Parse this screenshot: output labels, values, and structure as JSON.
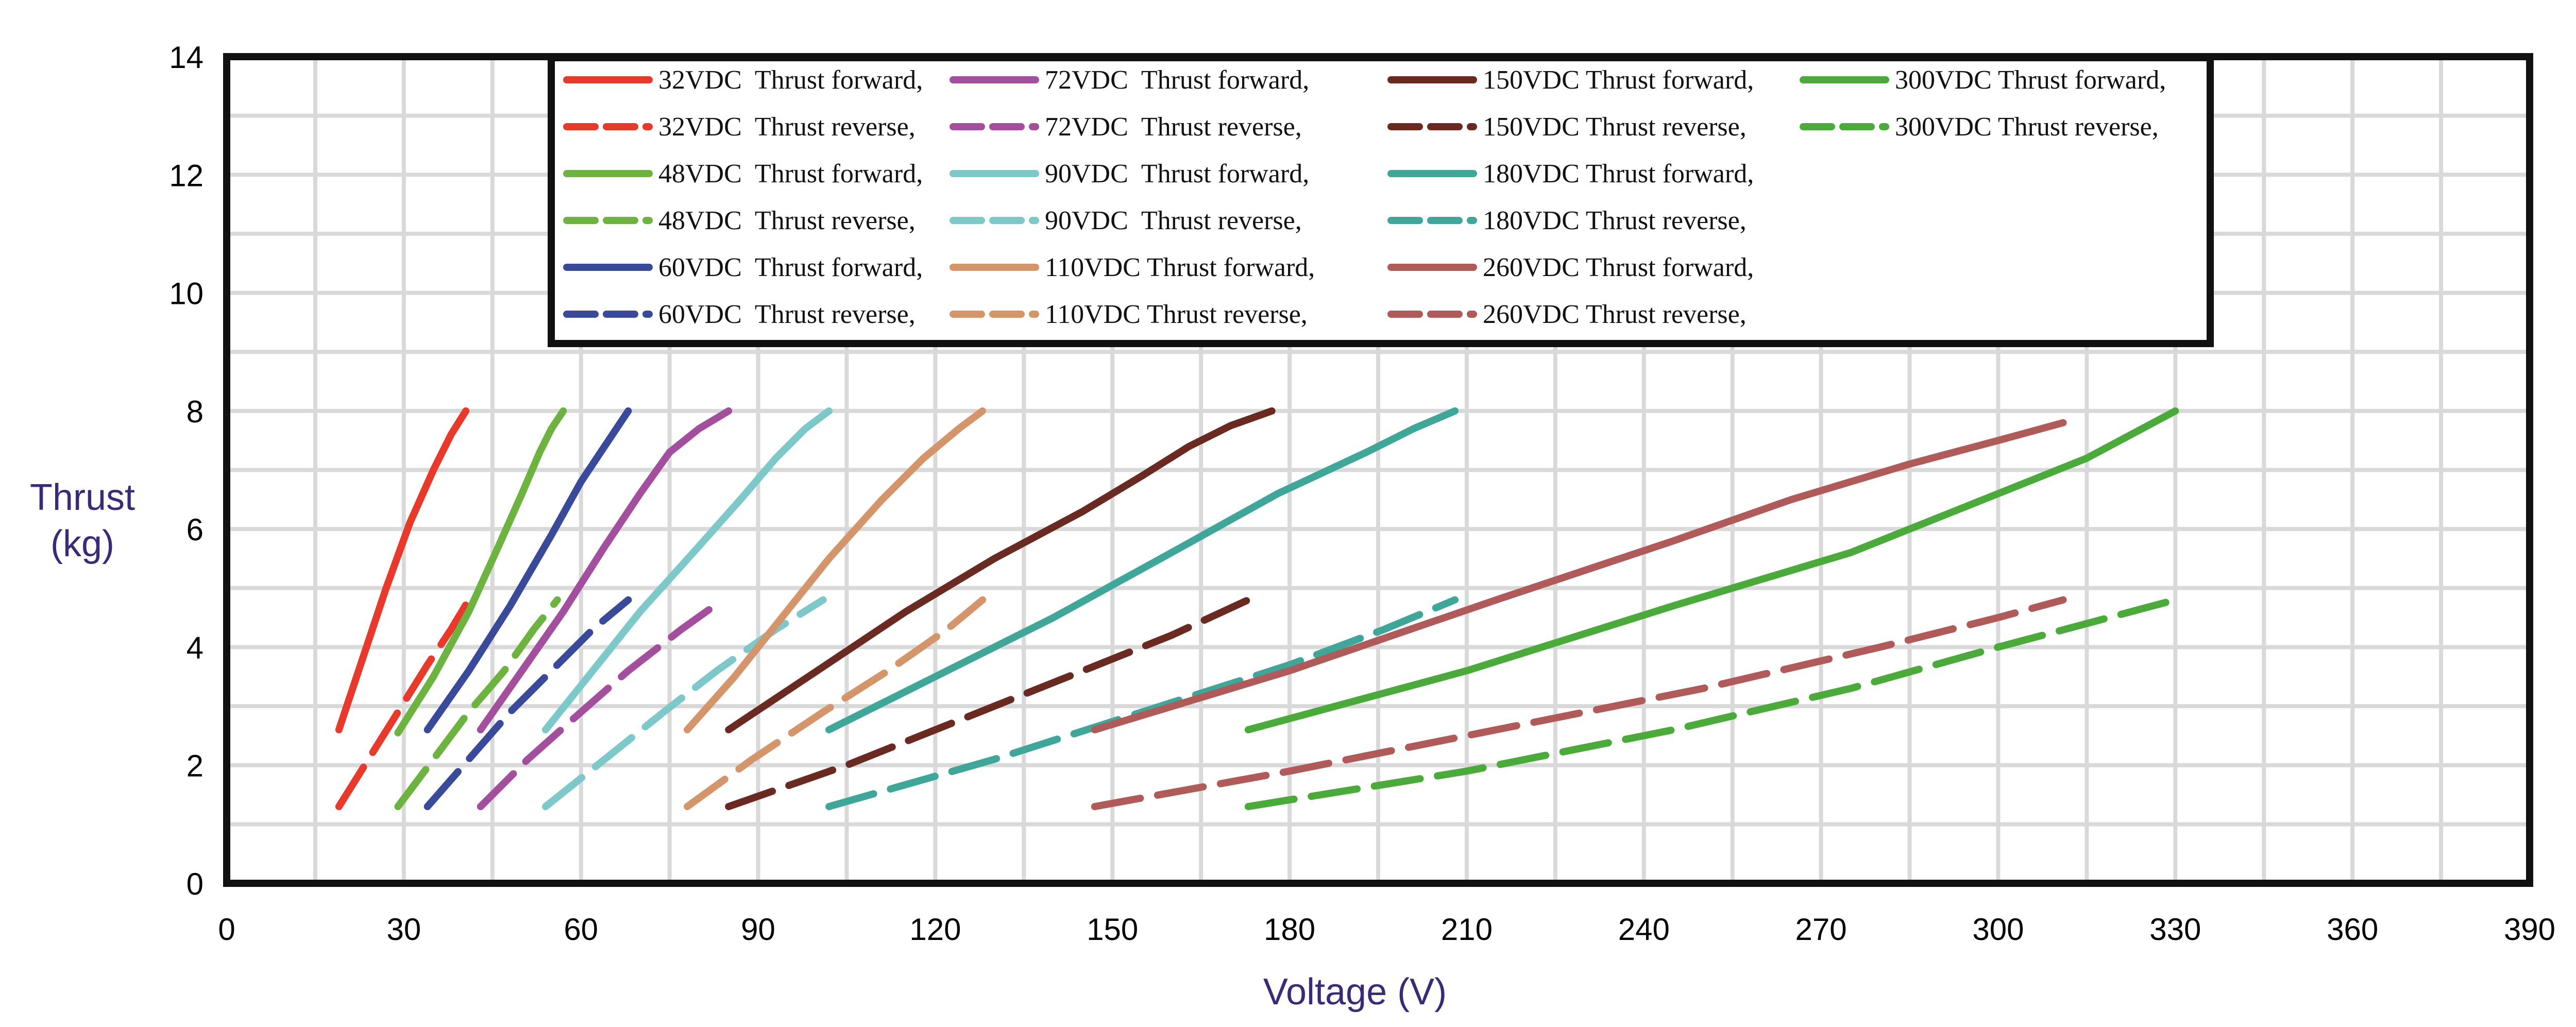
{
  "chart_data": {
    "type": "line",
    "title": "",
    "xlabel": "Voltage (V)",
    "ylabel_line1": "Thrust",
    "ylabel_line2": "(kg)",
    "xlim": [
      0,
      390
    ],
    "ylim": [
      0,
      14
    ],
    "xticks": [
      "0",
      "30",
      "60",
      "90",
      "120",
      "150",
      "180",
      "210",
      "240",
      "270",
      "300",
      "330",
      "360",
      "390"
    ],
    "yticks": [
      "0",
      "2",
      "4",
      "6",
      "8",
      "10",
      "12",
      "14"
    ],
    "x_minor_step": 15,
    "y_minor_step": 1,
    "grid": true,
    "legend_position": "top-center",
    "series": [
      {
        "name": "32VDC  Thrust forward,",
        "style": "solid",
        "color": "#e8392b",
        "points": [
          [
            19,
            2.6
          ],
          [
            23,
            3.8
          ],
          [
            27,
            5.0
          ],
          [
            31,
            6.1
          ],
          [
            35,
            7.0
          ],
          [
            38,
            7.6
          ],
          [
            40.5,
            8.0
          ]
        ]
      },
      {
        "name": "32VDC  Thrust reverse,",
        "style": "dashed",
        "color": "#e8392b",
        "points": [
          [
            19,
            1.3
          ],
          [
            24,
            2.1
          ],
          [
            29,
            2.9
          ],
          [
            34,
            3.7
          ],
          [
            38,
            4.3
          ],
          [
            41,
            4.8
          ]
        ]
      },
      {
        "name": "48VDC  Thrust forward,",
        "style": "solid",
        "color": "#6db33f",
        "points": [
          [
            29,
            2.55
          ],
          [
            35,
            3.5
          ],
          [
            41,
            4.6
          ],
          [
            46,
            5.7
          ],
          [
            50,
            6.6
          ],
          [
            53,
            7.3
          ],
          [
            55,
            7.7
          ],
          [
            57,
            8.0
          ]
        ]
      },
      {
        "name": "48VDC  Thrust reverse,",
        "style": "dashed",
        "color": "#6db33f",
        "points": [
          [
            29,
            1.3
          ],
          [
            35,
            2.1
          ],
          [
            41,
            2.9
          ],
          [
            47,
            3.6
          ],
          [
            52,
            4.3
          ],
          [
            56,
            4.8
          ]
        ]
      },
      {
        "name": "60VDC  Thrust forward,",
        "style": "solid",
        "color": "#3a4a9a",
        "points": [
          [
            34,
            2.6
          ],
          [
            41,
            3.6
          ],
          [
            48,
            4.7
          ],
          [
            55,
            5.9
          ],
          [
            60,
            6.8
          ],
          [
            64,
            7.4
          ],
          [
            68,
            8.0
          ]
        ]
      },
      {
        "name": "60VDC  Thrust reverse,",
        "style": "dashed",
        "color": "#3a4a9a",
        "points": [
          [
            34,
            1.3
          ],
          [
            41,
            2.1
          ],
          [
            48,
            2.9
          ],
          [
            55,
            3.6
          ],
          [
            62,
            4.3
          ],
          [
            68,
            4.8
          ]
        ]
      },
      {
        "name": "72VDC  Thrust forward,",
        "style": "solid",
        "color": "#a44f9e",
        "points": [
          [
            43,
            2.6
          ],
          [
            50,
            3.6
          ],
          [
            57,
            4.6
          ],
          [
            64,
            5.7
          ],
          [
            70,
            6.6
          ],
          [
            75,
            7.3
          ],
          [
            80,
            7.7
          ],
          [
            85,
            8.0
          ]
        ]
      },
      {
        "name": "72VDC  Thrust reverse,",
        "style": "dashed",
        "color": "#a44f9e",
        "points": [
          [
            43,
            1.3
          ],
          [
            51,
            2.1
          ],
          [
            60,
            2.9
          ],
          [
            68,
            3.6
          ],
          [
            77,
            4.3
          ],
          [
            84,
            4.8
          ]
        ]
      },
      {
        "name": "90VDC  Thrust forward,",
        "style": "solid",
        "color": "#7dc8c8",
        "points": [
          [
            54,
            2.6
          ],
          [
            62,
            3.6
          ],
          [
            70,
            4.6
          ],
          [
            79,
            5.6
          ],
          [
            87,
            6.5
          ],
          [
            93,
            7.2
          ],
          [
            98,
            7.7
          ],
          [
            102,
            8.0
          ]
        ]
      },
      {
        "name": "90VDC  Thrust reverse,",
        "style": "dashed",
        "color": "#7dc8c8",
        "points": [
          [
            54,
            1.3
          ],
          [
            64,
            2.1
          ],
          [
            74,
            2.9
          ],
          [
            83,
            3.6
          ],
          [
            93,
            4.3
          ],
          [
            101,
            4.8
          ]
        ]
      },
      {
        "name": "110VDC Thrust forward,",
        "style": "solid",
        "color": "#d4956a",
        "points": [
          [
            78,
            2.6
          ],
          [
            86,
            3.5
          ],
          [
            94,
            4.5
          ],
          [
            102,
            5.5
          ],
          [
            111,
            6.5
          ],
          [
            118,
            7.2
          ],
          [
            124,
            7.7
          ],
          [
            128,
            8.0
          ]
        ]
      },
      {
        "name": "110VDC Thrust reverse,",
        "style": "dashed",
        "color": "#d4956a",
        "points": [
          [
            78,
            1.3
          ],
          [
            89,
            2.1
          ],
          [
            101,
            2.9
          ],
          [
            112,
            3.6
          ],
          [
            122,
            4.3
          ],
          [
            128,
            4.8
          ]
        ]
      },
      {
        "name": "150VDC Thrust forward,",
        "style": "solid",
        "color": "#6b2a21",
        "points": [
          [
            85,
            2.6
          ],
          [
            100,
            3.6
          ],
          [
            115,
            4.6
          ],
          [
            130,
            5.5
          ],
          [
            145,
            6.3
          ],
          [
            155,
            6.9
          ],
          [
            163,
            7.4
          ],
          [
            170,
            7.75
          ],
          [
            177,
            8.0
          ]
        ]
      },
      {
        "name": "150VDC Thrust reverse,",
        "style": "dashed",
        "color": "#6b2a21",
        "points": [
          [
            85,
            1.3
          ],
          [
            105,
            2.0
          ],
          [
            125,
            2.8
          ],
          [
            145,
            3.6
          ],
          [
            160,
            4.2
          ],
          [
            173,
            4.8
          ]
        ]
      },
      {
        "name": "180VDC Thrust forward,",
        "style": "solid",
        "color": "#3fa69a",
        "points": [
          [
            102,
            2.6
          ],
          [
            120,
            3.5
          ],
          [
            140,
            4.5
          ],
          [
            160,
            5.6
          ],
          [
            178,
            6.6
          ],
          [
            193,
            7.3
          ],
          [
            201,
            7.7
          ],
          [
            208,
            8.0
          ]
        ]
      },
      {
        "name": "180VDC Thrust reverse,",
        "style": "dashed",
        "color": "#3fa69a",
        "points": [
          [
            102,
            1.3
          ],
          [
            130,
            2.1
          ],
          [
            155,
            2.9
          ],
          [
            180,
            3.7
          ],
          [
            196,
            4.3
          ],
          [
            208,
            4.8
          ]
        ]
      },
      {
        "name": "260VDC Thrust forward,",
        "style": "solid",
        "color": "#b05a5a",
        "points": [
          [
            147,
            2.6
          ],
          [
            180,
            3.6
          ],
          [
            215,
            4.8
          ],
          [
            245,
            5.8
          ],
          [
            265,
            6.5
          ],
          [
            285,
            7.1
          ],
          [
            300,
            7.5
          ],
          [
            311,
            7.8
          ]
        ]
      },
      {
        "name": "260VDC Thrust reverse,",
        "style": "dashed",
        "color": "#b05a5a",
        "points": [
          [
            147,
            1.3
          ],
          [
            180,
            1.9
          ],
          [
            215,
            2.6
          ],
          [
            250,
            3.3
          ],
          [
            280,
            4.0
          ],
          [
            300,
            4.5
          ],
          [
            311,
            4.8
          ]
        ]
      },
      {
        "name": "300VDC Thrust forward,",
        "style": "solid",
        "color": "#4aaa3a",
        "points": [
          [
            173,
            2.6
          ],
          [
            210,
            3.6
          ],
          [
            245,
            4.7
          ],
          [
            275,
            5.6
          ],
          [
            300,
            6.6
          ],
          [
            315,
            7.2
          ],
          [
            330,
            8.0
          ]
        ]
      },
      {
        "name": "300VDC Thrust reverse,",
        "style": "dashed",
        "color": "#4aaa3a",
        "points": [
          [
            173,
            1.3
          ],
          [
            210,
            1.9
          ],
          [
            245,
            2.6
          ],
          [
            275,
            3.3
          ],
          [
            300,
            4.0
          ],
          [
            315,
            4.4
          ],
          [
            330,
            4.8
          ]
        ]
      }
    ]
  }
}
